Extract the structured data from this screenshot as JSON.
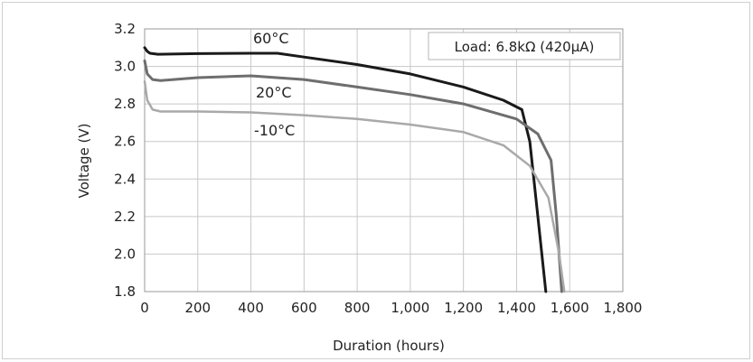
{
  "chart_data": {
    "type": "line",
    "title": "",
    "xlabel": "Duration (hours)",
    "ylabel": "Voltage (V)",
    "xlim": [
      0,
      1800
    ],
    "ylim": [
      1.8,
      3.2
    ],
    "grid": true,
    "annotation": "Load: 6.8kΩ (420µA)",
    "x_ticks": [
      0,
      200,
      400,
      600,
      800,
      1000,
      1200,
      1400,
      1600,
      1800
    ],
    "x_tick_labels": [
      "0",
      "200",
      "400",
      "600",
      "800",
      "1,000",
      "1,200",
      "1,400",
      "1,600",
      "1,800"
    ],
    "y_ticks": [
      1.8,
      2.0,
      2.2,
      2.4,
      2.6,
      2.8,
      3.0,
      3.2
    ],
    "y_tick_labels": [
      "1.8",
      "2.0",
      "2.2",
      "2.4",
      "2.6",
      "2.8",
      "3.0",
      "3.2"
    ],
    "series": [
      {
        "name": "60°C",
        "color": "#1a1a1a",
        "points": [
          [
            0,
            3.1
          ],
          [
            10,
            3.08
          ],
          [
            20,
            3.07
          ],
          [
            50,
            3.065
          ],
          [
            200,
            3.068
          ],
          [
            400,
            3.07
          ],
          [
            500,
            3.07
          ],
          [
            600,
            3.05
          ],
          [
            800,
            3.01
          ],
          [
            1000,
            2.96
          ],
          [
            1200,
            2.89
          ],
          [
            1350,
            2.82
          ],
          [
            1420,
            2.77
          ],
          [
            1450,
            2.6
          ],
          [
            1480,
            2.2
          ],
          [
            1510,
            1.8
          ]
        ]
      },
      {
        "name": "20°C",
        "color": "#6e6e6e",
        "points": [
          [
            0,
            3.03
          ],
          [
            10,
            2.96
          ],
          [
            30,
            2.93
          ],
          [
            60,
            2.925
          ],
          [
            200,
            2.94
          ],
          [
            400,
            2.95
          ],
          [
            600,
            2.93
          ],
          [
            800,
            2.89
          ],
          [
            1000,
            2.85
          ],
          [
            1200,
            2.8
          ],
          [
            1400,
            2.72
          ],
          [
            1480,
            2.64
          ],
          [
            1530,
            2.5
          ],
          [
            1550,
            2.2
          ],
          [
            1570,
            1.8
          ]
        ]
      },
      {
        "name": "-10°C",
        "color": "#a9a9a9",
        "points": [
          [
            0,
            2.92
          ],
          [
            10,
            2.82
          ],
          [
            30,
            2.77
          ],
          [
            60,
            2.76
          ],
          [
            200,
            2.76
          ],
          [
            400,
            2.755
          ],
          [
            600,
            2.74
          ],
          [
            800,
            2.72
          ],
          [
            1000,
            2.69
          ],
          [
            1200,
            2.65
          ],
          [
            1350,
            2.58
          ],
          [
            1450,
            2.47
          ],
          [
            1520,
            2.3
          ],
          [
            1560,
            2.0
          ],
          [
            1580,
            1.8
          ]
        ]
      }
    ]
  }
}
